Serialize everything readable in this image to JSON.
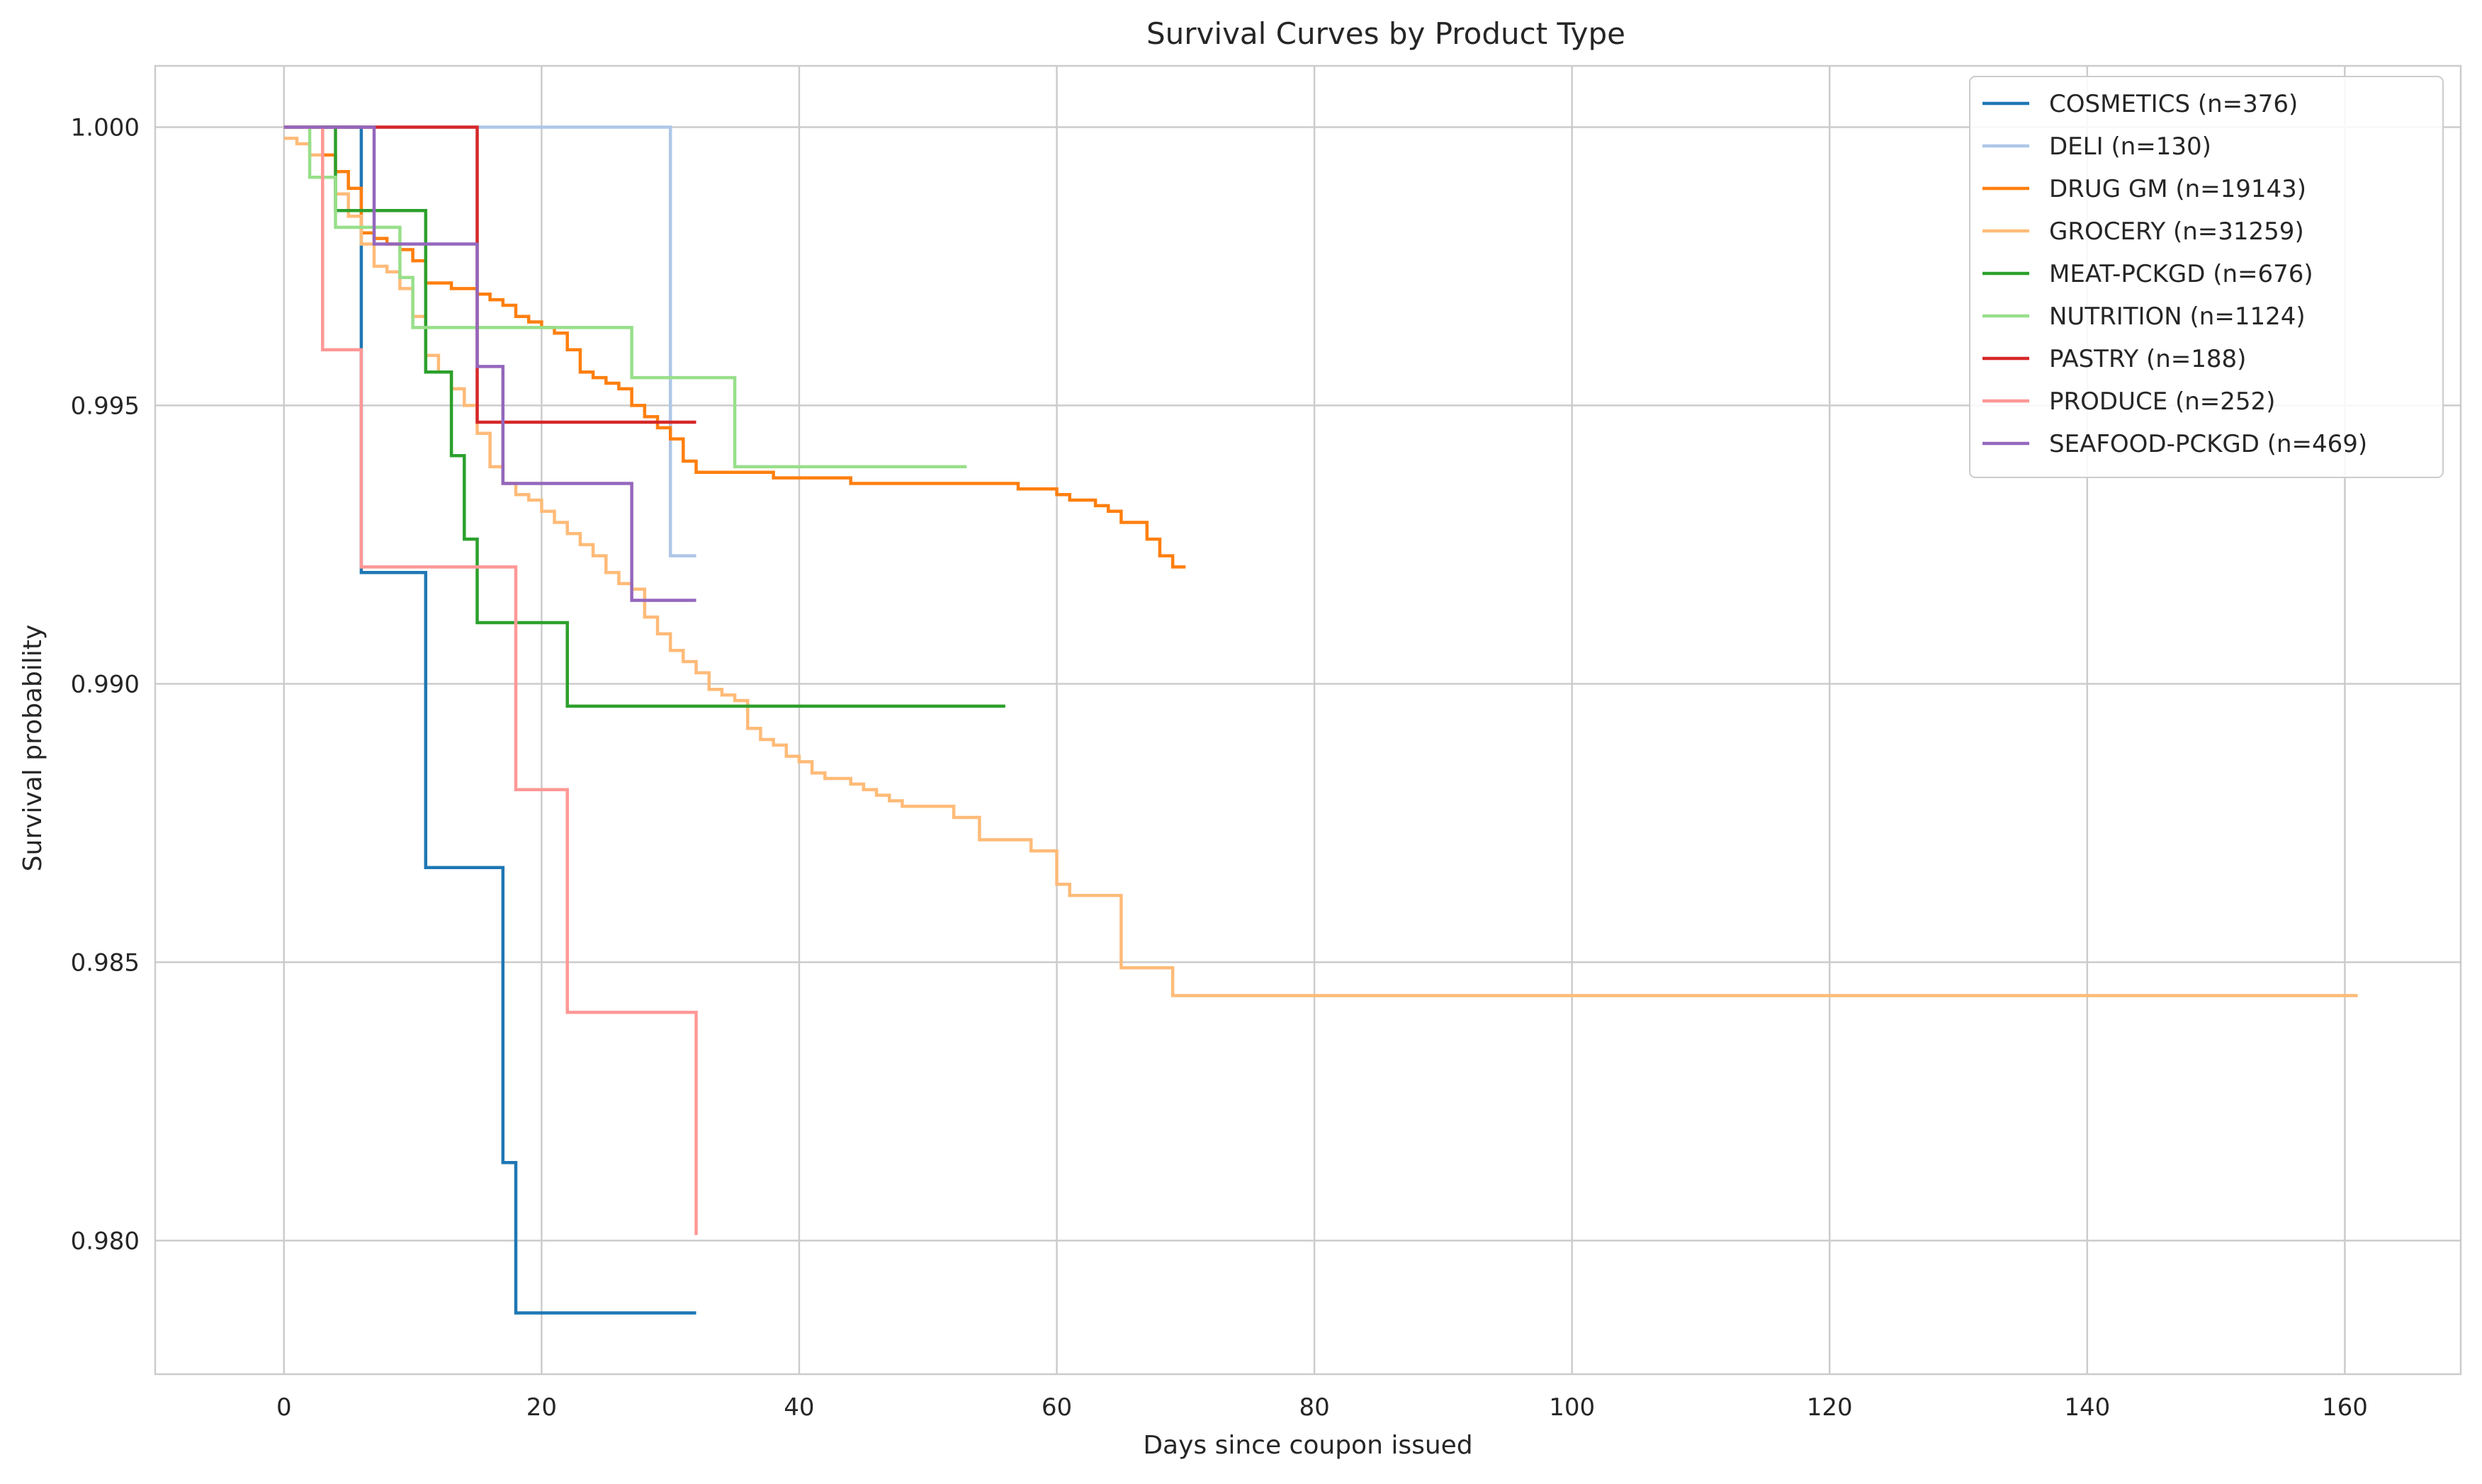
{
  "chart_data": {
    "type": "line",
    "step": true,
    "title": "Survival Curves by Product Type",
    "xlabel": "Days since coupon issued",
    "ylabel": "Survival probability",
    "xlim": [
      -10,
      169
    ],
    "ylim": [
      0.9776,
      1.0011
    ],
    "xticks": [
      0,
      20,
      40,
      60,
      80,
      100,
      120,
      140,
      160
    ],
    "xtick_labels": [
      "0",
      "20",
      "40",
      "60",
      "80",
      "100",
      "120",
      "140",
      "160"
    ],
    "yticks": [
      0.98,
      0.985,
      0.99,
      0.995,
      1.0
    ],
    "ytick_labels": [
      "0.980",
      "0.985",
      "0.990",
      "0.995",
      "1.000"
    ],
    "grid": true,
    "legend_position": "top-right",
    "series": [
      {
        "name": "COSMETICS (n=376)",
        "color": "#1f77b4",
        "x": [
          0,
          6,
          6,
          11,
          17,
          18,
          32
        ],
        "y": [
          1.0,
          1.0,
          0.992,
          0.9867,
          0.9814,
          0.9787,
          0.9787
        ]
      },
      {
        "name": "DELI (n=130)",
        "color": "#aec7e8",
        "x": [
          0,
          30,
          32
        ],
        "y": [
          1.0,
          0.9923,
          0.9923
        ]
      },
      {
        "name": "DRUG GM (n=19143)",
        "color": "#ff7f0e",
        "x": [
          0,
          3,
          4,
          5,
          6,
          7,
          8,
          9,
          10,
          11,
          12,
          13,
          14,
          15,
          16,
          17,
          18,
          19,
          20,
          21,
          22,
          23,
          24,
          25,
          26,
          27,
          28,
          29,
          30,
          31,
          32,
          35,
          38,
          40,
          44,
          50,
          55,
          56,
          57,
          60,
          61,
          62,
          63,
          64,
          65,
          66,
          67,
          68,
          69,
          70
        ],
        "y": [
          1.0,
          0.9995,
          0.9992,
          0.9989,
          0.9981,
          0.998,
          0.9979,
          0.9978,
          0.9976,
          0.9972,
          0.9972,
          0.9971,
          0.9971,
          0.997,
          0.9969,
          0.9968,
          0.9966,
          0.9965,
          0.9964,
          0.9963,
          0.996,
          0.9956,
          0.9955,
          0.9954,
          0.9953,
          0.995,
          0.9948,
          0.9946,
          0.9944,
          0.994,
          0.9938,
          0.9938,
          0.9937,
          0.9937,
          0.9936,
          0.9936,
          0.9936,
          0.9936,
          0.9935,
          0.9934,
          0.9933,
          0.9933,
          0.9932,
          0.9931,
          0.9929,
          0.9929,
          0.9926,
          0.9923,
          0.9921,
          0.9921
        ]
      },
      {
        "name": "GROCERY (n=31259)",
        "color": "#ffbb78",
        "x": [
          0,
          1,
          2,
          3,
          4,
          5,
          6,
          7,
          8,
          9,
          10,
          11,
          12,
          13,
          14,
          15,
          16,
          17,
          18,
          19,
          20,
          21,
          22,
          23,
          24,
          25,
          26,
          27,
          28,
          29,
          30,
          31,
          32,
          33,
          34,
          35,
          36,
          37,
          38,
          39,
          40,
          41,
          42,
          43,
          44,
          45,
          46,
          47,
          48,
          49,
          52,
          54,
          56,
          58,
          60,
          61,
          62,
          65,
          69,
          161
        ],
        "y": [
          0.9998,
          0.9997,
          0.9995,
          0.9991,
          0.9988,
          0.9984,
          0.9979,
          0.9975,
          0.9974,
          0.9971,
          0.9966,
          0.9959,
          0.9956,
          0.9953,
          0.995,
          0.9945,
          0.9939,
          0.9936,
          0.9934,
          0.9933,
          0.9931,
          0.9929,
          0.9927,
          0.9925,
          0.9923,
          0.992,
          0.9918,
          0.9917,
          0.9912,
          0.9909,
          0.9906,
          0.9904,
          0.9902,
          0.9899,
          0.9898,
          0.9897,
          0.9892,
          0.989,
          0.9889,
          0.9887,
          0.9886,
          0.9884,
          0.9883,
          0.9883,
          0.9882,
          0.9881,
          0.988,
          0.9879,
          0.9878,
          0.9878,
          0.9876,
          0.9872,
          0.9872,
          0.987,
          0.9864,
          0.9862,
          0.9862,
          0.9849,
          0.9844,
          0.9844
        ]
      },
      {
        "name": "MEAT-PCKGD (n=676)",
        "color": "#2ca02c",
        "x": [
          0,
          4,
          11,
          13,
          14,
          15,
          22,
          56
        ],
        "y": [
          1.0,
          0.9985,
          0.9956,
          0.9941,
          0.9926,
          0.9911,
          0.9896,
          0.9896
        ]
      },
      {
        "name": "NUTRITION (n=1124)",
        "color": "#98df8a",
        "x": [
          0,
          2,
          4,
          9,
          10,
          27,
          35,
          53
        ],
        "y": [
          1.0,
          0.9991,
          0.9982,
          0.9973,
          0.9964,
          0.9955,
          0.9939,
          0.9939
        ]
      },
      {
        "name": "PASTRY (n=188)",
        "color": "#d62728",
        "x": [
          0,
          15,
          32
        ],
        "y": [
          1.0,
          0.9947,
          0.9947
        ]
      },
      {
        "name": "PRODUCE (n=252)",
        "color": "#ff9896",
        "x": [
          0,
          3,
          6,
          18,
          22,
          32,
          32
        ],
        "y": [
          1.0,
          0.996,
          0.9921,
          0.9881,
          0.9841,
          0.9841,
          0.9801
        ]
      },
      {
        "name": "SEAFOOD-PCKGD (n=469)",
        "color": "#9467bd",
        "x": [
          0,
          7,
          15,
          17,
          27,
          32
        ],
        "y": [
          1.0,
          0.9979,
          0.9957,
          0.9936,
          0.9915,
          0.9915
        ]
      }
    ]
  }
}
